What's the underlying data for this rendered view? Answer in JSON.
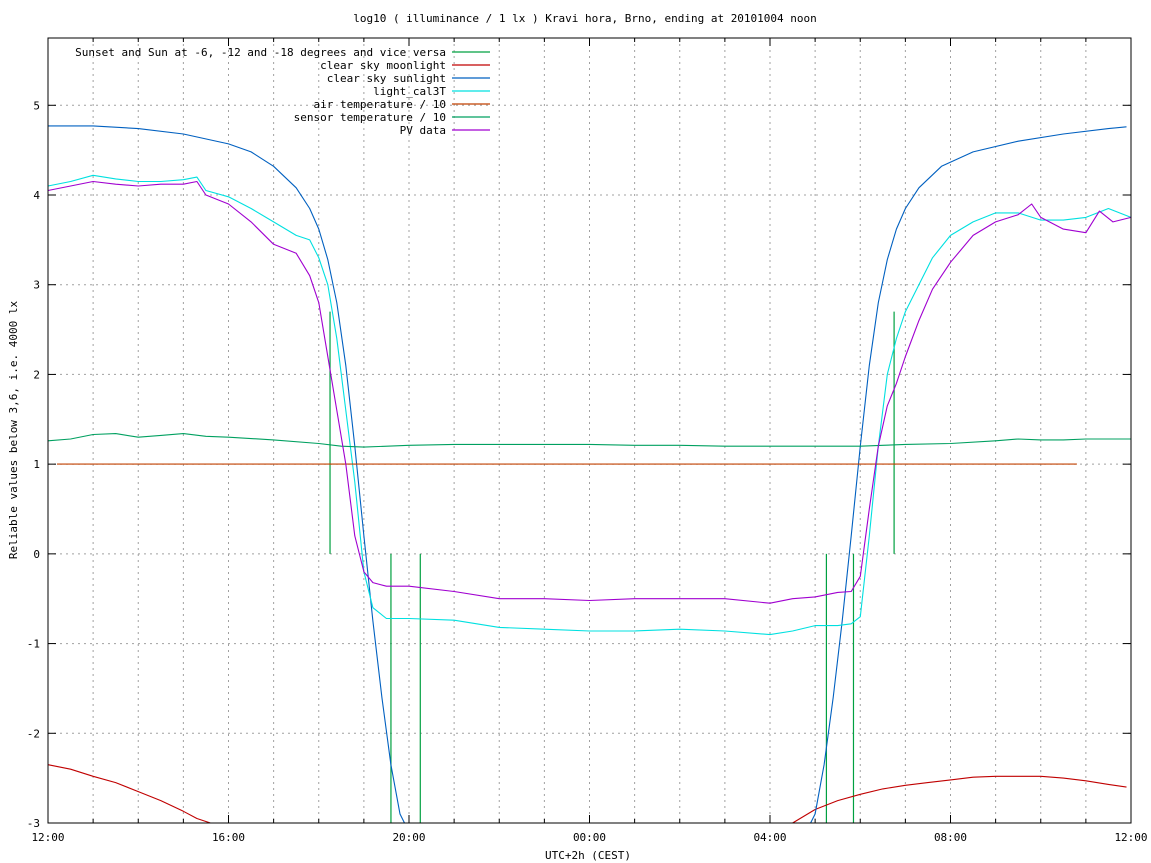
{
  "chart_data": {
    "type": "line",
    "title": "log10 ( illuminance / 1 lx ) Kravi hora, Brno, ending at 20101004 noon",
    "xlabel": "UTC+2h (CEST)",
    "ylabel": "Reliable values below 3,6, i.e. 4000 lx",
    "x_unit": "hours from 12:00 (display time)",
    "xlim": [
      0,
      24
    ],
    "ylim": [
      -3,
      5.75
    ],
    "x_ticks": [
      {
        "x": 0,
        "label": "12:00"
      },
      {
        "x": 4,
        "label": "16:00"
      },
      {
        "x": 8,
        "label": "20:00"
      },
      {
        "x": 12,
        "label": "00:00"
      },
      {
        "x": 16,
        "label": "04:00"
      },
      {
        "x": 20,
        "label": "08:00"
      },
      {
        "x": 24,
        "label": "12:00"
      }
    ],
    "x_minor_grid_step": 1,
    "y_ticks": [
      {
        "y": -3,
        "label": "-3"
      },
      {
        "y": -2,
        "label": "-2"
      },
      {
        "y": -1,
        "label": "-1"
      },
      {
        "y": 0,
        "label": "0"
      },
      {
        "y": 1,
        "label": "1"
      },
      {
        "y": 2,
        "label": "2"
      },
      {
        "y": 3,
        "label": "3"
      },
      {
        "y": 4,
        "label": "4"
      },
      {
        "y": 5,
        "label": "5"
      }
    ],
    "grid": true,
    "legend": "top-left",
    "series": [
      {
        "name": "Sunset and Sun at -6, -12 and -18 degrees and vice versa",
        "color": "#00a040",
        "kind": "impulse",
        "impulses": [
          {
            "x": 6.25,
            "y0": 0,
            "y1": 2.7
          },
          {
            "x": 7.6,
            "y0": -3,
            "y1": 0
          },
          {
            "x": 8.25,
            "y0": -3,
            "y1": 0
          },
          {
            "x": 17.25,
            "y0": -3,
            "y1": 0
          },
          {
            "x": 17.85,
            "y0": -3,
            "y1": 0
          },
          {
            "x": 18.75,
            "y0": 0,
            "y1": 2.7
          }
        ]
      },
      {
        "name": "clear sky moonlight",
        "color": "#c00000",
        "points": [
          [
            0,
            -2.35
          ],
          [
            0.5,
            -2.4
          ],
          [
            1,
            -2.48
          ],
          [
            1.5,
            -2.55
          ],
          [
            2,
            -2.65
          ],
          [
            2.5,
            -2.75
          ],
          [
            3,
            -2.87
          ],
          [
            3.3,
            -2.95
          ],
          [
            3.6,
            -3.0
          ],
          [
            16.5,
            -3.0
          ],
          [
            17,
            -2.85
          ],
          [
            17.5,
            -2.75
          ],
          [
            18,
            -2.68
          ],
          [
            18.5,
            -2.62
          ],
          [
            19,
            -2.58
          ],
          [
            19.5,
            -2.55
          ],
          [
            20,
            -2.52
          ],
          [
            20.5,
            -2.49
          ],
          [
            21,
            -2.48
          ],
          [
            21.5,
            -2.48
          ],
          [
            22,
            -2.48
          ],
          [
            22.5,
            -2.5
          ],
          [
            23,
            -2.53
          ],
          [
            23.5,
            -2.57
          ],
          [
            23.9,
            -2.6
          ]
        ]
      },
      {
        "name": "clear sky sunlight",
        "color": "#0060c0",
        "points": [
          [
            0,
            4.77
          ],
          [
            1,
            4.77
          ],
          [
            2,
            4.74
          ],
          [
            3,
            4.68
          ],
          [
            4,
            4.57
          ],
          [
            4.5,
            4.48
          ],
          [
            5,
            4.32
          ],
          [
            5.5,
            4.08
          ],
          [
            5.8,
            3.85
          ],
          [
            6,
            3.62
          ],
          [
            6.2,
            3.28
          ],
          [
            6.4,
            2.8
          ],
          [
            6.6,
            2.1
          ],
          [
            6.8,
            1.2
          ],
          [
            7.0,
            0.2
          ],
          [
            7.2,
            -0.75
          ],
          [
            7.4,
            -1.6
          ],
          [
            7.6,
            -2.35
          ],
          [
            7.8,
            -2.9
          ],
          [
            7.9,
            -3.0
          ],
          [
            16.9,
            -3.0
          ],
          [
            17.0,
            -2.9
          ],
          [
            17.2,
            -2.35
          ],
          [
            17.4,
            -1.6
          ],
          [
            17.6,
            -0.75
          ],
          [
            17.8,
            0.2
          ],
          [
            18.0,
            1.2
          ],
          [
            18.2,
            2.1
          ],
          [
            18.4,
            2.8
          ],
          [
            18.6,
            3.28
          ],
          [
            18.8,
            3.62
          ],
          [
            19,
            3.85
          ],
          [
            19.3,
            4.08
          ],
          [
            19.8,
            4.32
          ],
          [
            20.5,
            4.48
          ],
          [
            21.5,
            4.6
          ],
          [
            22.5,
            4.68
          ],
          [
            23.5,
            4.74
          ],
          [
            23.9,
            4.76
          ]
        ]
      },
      {
        "name": "light_cal3T",
        "color": "#00e0e0",
        "points": [
          [
            0,
            4.1
          ],
          [
            0.5,
            4.15
          ],
          [
            1,
            4.22
          ],
          [
            1.5,
            4.18
          ],
          [
            2,
            4.15
          ],
          [
            2.5,
            4.15
          ],
          [
            3,
            4.17
          ],
          [
            3.3,
            4.2
          ],
          [
            3.5,
            4.05
          ],
          [
            4,
            3.98
          ],
          [
            4.5,
            3.85
          ],
          [
            5,
            3.7
          ],
          [
            5.5,
            3.55
          ],
          [
            5.8,
            3.5
          ],
          [
            6,
            3.3
          ],
          [
            6.2,
            3.0
          ],
          [
            6.4,
            2.4
          ],
          [
            6.6,
            1.6
          ],
          [
            6.8,
            0.8
          ],
          [
            7.0,
            -0.2
          ],
          [
            7.2,
            -0.6
          ],
          [
            7.5,
            -0.72
          ],
          [
            8,
            -0.72
          ],
          [
            9,
            -0.74
          ],
          [
            10,
            -0.82
          ],
          [
            11,
            -0.84
          ],
          [
            12,
            -0.86
          ],
          [
            13,
            -0.86
          ],
          [
            14,
            -0.84
          ],
          [
            15,
            -0.86
          ],
          [
            16,
            -0.9
          ],
          [
            16.5,
            -0.86
          ],
          [
            17,
            -0.8
          ],
          [
            17.5,
            -0.8
          ],
          [
            17.8,
            -0.78
          ],
          [
            18,
            -0.7
          ],
          [
            18.2,
            0.2
          ],
          [
            18.4,
            1.2
          ],
          [
            18.6,
            2.0
          ],
          [
            18.8,
            2.4
          ],
          [
            19,
            2.7
          ],
          [
            19.3,
            3.0
          ],
          [
            19.6,
            3.3
          ],
          [
            20,
            3.55
          ],
          [
            20.5,
            3.7
          ],
          [
            21,
            3.8
          ],
          [
            21.5,
            3.8
          ],
          [
            22,
            3.72
          ],
          [
            22.5,
            3.72
          ],
          [
            23,
            3.75
          ],
          [
            23.5,
            3.85
          ],
          [
            24,
            3.75
          ]
        ]
      },
      {
        "name": "air temperature / 10",
        "color": "#c04000",
        "points": [
          [
            0.2,
            1.0
          ],
          [
            22.8,
            1.0
          ]
        ]
      },
      {
        "name": "sensor temperature / 10",
        "color": "#00a060",
        "points": [
          [
            0,
            1.26
          ],
          [
            0.5,
            1.28
          ],
          [
            1,
            1.33
          ],
          [
            1.5,
            1.34
          ],
          [
            2,
            1.3
          ],
          [
            2.5,
            1.32
          ],
          [
            3,
            1.34
          ],
          [
            3.5,
            1.31
          ],
          [
            4,
            1.3
          ],
          [
            5,
            1.27
          ],
          [
            6,
            1.23
          ],
          [
            6.5,
            1.2
          ],
          [
            7,
            1.19
          ],
          [
            8,
            1.21
          ],
          [
            9,
            1.22
          ],
          [
            10,
            1.22
          ],
          [
            11,
            1.22
          ],
          [
            12,
            1.22
          ],
          [
            13,
            1.21
          ],
          [
            14,
            1.21
          ],
          [
            15,
            1.2
          ],
          [
            16,
            1.2
          ],
          [
            17,
            1.2
          ],
          [
            18,
            1.2
          ],
          [
            18.5,
            1.21
          ],
          [
            19,
            1.22
          ],
          [
            20,
            1.23
          ],
          [
            21,
            1.26
          ],
          [
            21.5,
            1.28
          ],
          [
            22,
            1.27
          ],
          [
            22.5,
            1.27
          ],
          [
            23,
            1.28
          ],
          [
            23.5,
            1.28
          ],
          [
            24,
            1.28
          ]
        ]
      },
      {
        "name": "PV data",
        "color": "#a000d0",
        "points": [
          [
            0,
            4.05
          ],
          [
            0.5,
            4.1
          ],
          [
            1,
            4.15
          ],
          [
            1.5,
            4.12
          ],
          [
            2,
            4.1
          ],
          [
            2.5,
            4.12
          ],
          [
            3,
            4.12
          ],
          [
            3.3,
            4.15
          ],
          [
            3.5,
            4.0
          ],
          [
            4,
            3.9
          ],
          [
            4.5,
            3.7
          ],
          [
            5,
            3.45
          ],
          [
            5.5,
            3.35
          ],
          [
            5.8,
            3.1
          ],
          [
            6,
            2.8
          ],
          [
            6.2,
            2.2
          ],
          [
            6.4,
            1.6
          ],
          [
            6.6,
            1.0
          ],
          [
            6.8,
            0.2
          ],
          [
            7.0,
            -0.2
          ],
          [
            7.2,
            -0.32
          ],
          [
            7.5,
            -0.36
          ],
          [
            8,
            -0.36
          ],
          [
            9,
            -0.42
          ],
          [
            10,
            -0.5
          ],
          [
            11,
            -0.5
          ],
          [
            12,
            -0.52
          ],
          [
            13,
            -0.5
          ],
          [
            14,
            -0.5
          ],
          [
            15,
            -0.5
          ],
          [
            16,
            -0.55
          ],
          [
            16.5,
            -0.5
          ],
          [
            17,
            -0.48
          ],
          [
            17.5,
            -0.43
          ],
          [
            17.8,
            -0.42
          ],
          [
            18,
            -0.25
          ],
          [
            18.2,
            0.5
          ],
          [
            18.4,
            1.2
          ],
          [
            18.6,
            1.65
          ],
          [
            18.8,
            1.9
          ],
          [
            19,
            2.2
          ],
          [
            19.3,
            2.6
          ],
          [
            19.6,
            2.95
          ],
          [
            20,
            3.25
          ],
          [
            20.5,
            3.55
          ],
          [
            21,
            3.7
          ],
          [
            21.5,
            3.78
          ],
          [
            21.8,
            3.9
          ],
          [
            22,
            3.75
          ],
          [
            22.5,
            3.62
          ],
          [
            23,
            3.58
          ],
          [
            23.3,
            3.82
          ],
          [
            23.6,
            3.7
          ],
          [
            24,
            3.75
          ]
        ]
      }
    ]
  }
}
